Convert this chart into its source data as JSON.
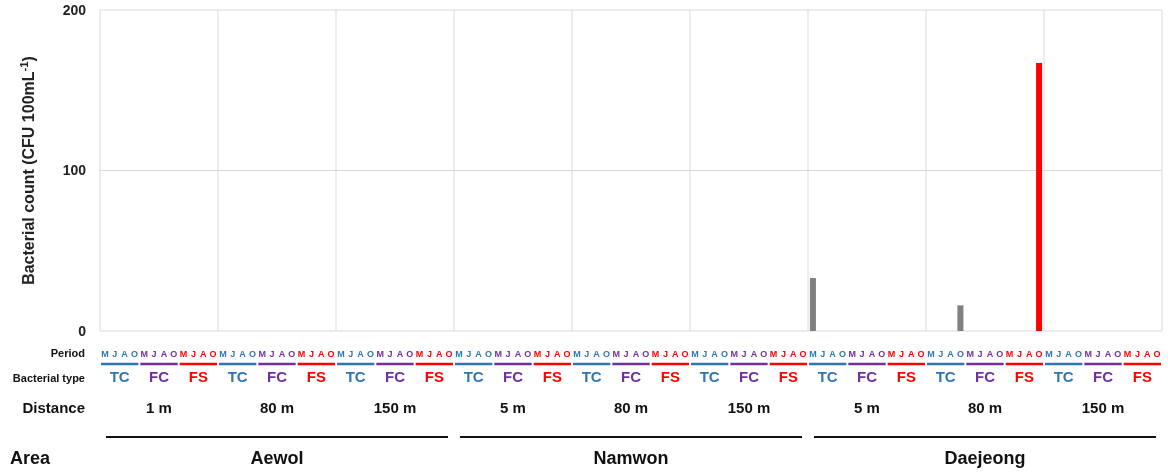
{
  "chart_data": {
    "type": "bar",
    "ylabel": "Bacterial count (CFU 100mL$^{-1}$)",
    "ylim": [
      0,
      200
    ],
    "yticks": [
      0,
      100,
      200
    ],
    "grid": true,
    "categories": [
      "M",
      "J",
      "A",
      "O",
      "M",
      "J",
      "A",
      "O",
      "M",
      "J",
      "A",
      "O",
      "M",
      "J",
      "A",
      "O",
      "M",
      "J",
      "A",
      "O",
      "M",
      "J",
      "A",
      "O",
      "M",
      "J",
      "A",
      "O",
      "M",
      "J",
      "A",
      "O",
      "M",
      "J",
      "A",
      "O",
      "M",
      "J",
      "A",
      "O",
      "M",
      "J",
      "A",
      "O",
      "M",
      "J",
      "A",
      "O",
      "M",
      "J",
      "A",
      "O",
      "M",
      "J",
      "A",
      "O",
      "M",
      "J",
      "A",
      "O",
      "M",
      "J",
      "A",
      "O",
      "M",
      "J",
      "A",
      "O",
      "M",
      "J",
      "A",
      "O",
      "M",
      "J",
      "A",
      "O",
      "M",
      "J",
      "A",
      "O",
      "M",
      "J",
      "A",
      "O",
      "M",
      "J",
      "A",
      "O",
      "M",
      "J",
      "A",
      "O",
      "M",
      "J",
      "A",
      "O",
      "M",
      "J",
      "A",
      "O",
      "M",
      "J",
      "A",
      "O",
      "M",
      "J",
      "A",
      "O"
    ],
    "values": [
      0,
      0,
      0,
      0,
      0,
      0,
      0,
      0,
      0,
      0,
      0,
      0,
      0,
      0,
      0,
      0,
      0,
      0,
      0,
      0,
      0,
      0,
      0,
      0,
      0,
      0,
      0,
      0,
      0,
      0,
      0,
      0,
      0,
      0,
      0,
      0,
      0,
      0,
      0,
      0,
      0,
      0,
      0,
      0,
      0,
      0,
      0,
      0,
      0,
      0,
      0,
      0,
      0,
      0,
      0,
      0,
      0,
      0,
      0,
      0,
      0,
      0,
      0,
      0,
      0,
      0,
      0,
      0,
      0,
      0,
      0,
      0,
      33,
      0,
      0,
      0,
      0,
      0,
      0,
      0,
      0,
      0,
      0,
      0,
      0,
      0,
      0,
      16,
      0,
      0,
      0,
      0,
      0,
      0,
      0,
      167,
      0,
      0,
      0,
      0,
      0,
      0,
      0,
      0,
      0,
      0,
      0,
      0
    ],
    "colors": [
      "#808080",
      "#808080",
      "#808080",
      "#808080",
      "#808080",
      "#808080",
      "#808080",
      "#808080",
      "#ff0000",
      "#ff0000",
      "#ff0000",
      "#ff0000",
      "#808080",
      "#808080",
      "#808080",
      "#808080",
      "#808080",
      "#808080",
      "#808080",
      "#808080",
      "#ff0000",
      "#ff0000",
      "#ff0000",
      "#ff0000",
      "#808080",
      "#808080",
      "#808080",
      "#808080",
      "#808080",
      "#808080",
      "#808080",
      "#808080",
      "#ff0000",
      "#ff0000",
      "#ff0000",
      "#ff0000",
      "#808080",
      "#808080",
      "#808080",
      "#808080",
      "#808080",
      "#808080",
      "#808080",
      "#808080",
      "#ff0000",
      "#ff0000",
      "#ff0000",
      "#ff0000",
      "#808080",
      "#808080",
      "#808080",
      "#808080",
      "#808080",
      "#808080",
      "#808080",
      "#808080",
      "#ff0000",
      "#ff0000",
      "#ff0000",
      "#ff0000",
      "#808080",
      "#808080",
      "#808080",
      "#808080",
      "#808080",
      "#808080",
      "#808080",
      "#808080",
      "#ff0000",
      "#ff0000",
      "#ff0000",
      "#ff0000",
      "#808080",
      "#808080",
      "#808080",
      "#808080",
      "#808080",
      "#808080",
      "#808080",
      "#808080",
      "#ff0000",
      "#ff0000",
      "#ff0000",
      "#ff0000",
      "#808080",
      "#808080",
      "#808080",
      "#808080",
      "#808080",
      "#808080",
      "#808080",
      "#808080",
      "#ff0000",
      "#ff0000",
      "#ff0000",
      "#ff0000",
      "#808080",
      "#808080",
      "#808080",
      "#808080",
      "#808080",
      "#808080",
      "#808080",
      "#808080",
      "#ff0000",
      "#ff0000",
      "#ff0000",
      "#ff0000"
    ],
    "annotations": [
      "Period",
      "Bacterial type",
      "Distance",
      "Area",
      "TC",
      "FC",
      "FS",
      "TC",
      "FC",
      "FS",
      "TC",
      "FC",
      "FS",
      "TC",
      "FC",
      "FS",
      "TC",
      "FC",
      "FS",
      "TC",
      "FC",
      "FS",
      "TC",
      "FC",
      "FS",
      "TC",
      "FC",
      "FS",
      "TC",
      "FC",
      "FS",
      "1 m",
      "80 m",
      "150 m",
      "5 m",
      "80 m",
      "150 m",
      "5 m",
      "80 m",
      "150 m",
      "Aewol",
      "Namwon",
      "Daejeong"
    ]
  }
}
